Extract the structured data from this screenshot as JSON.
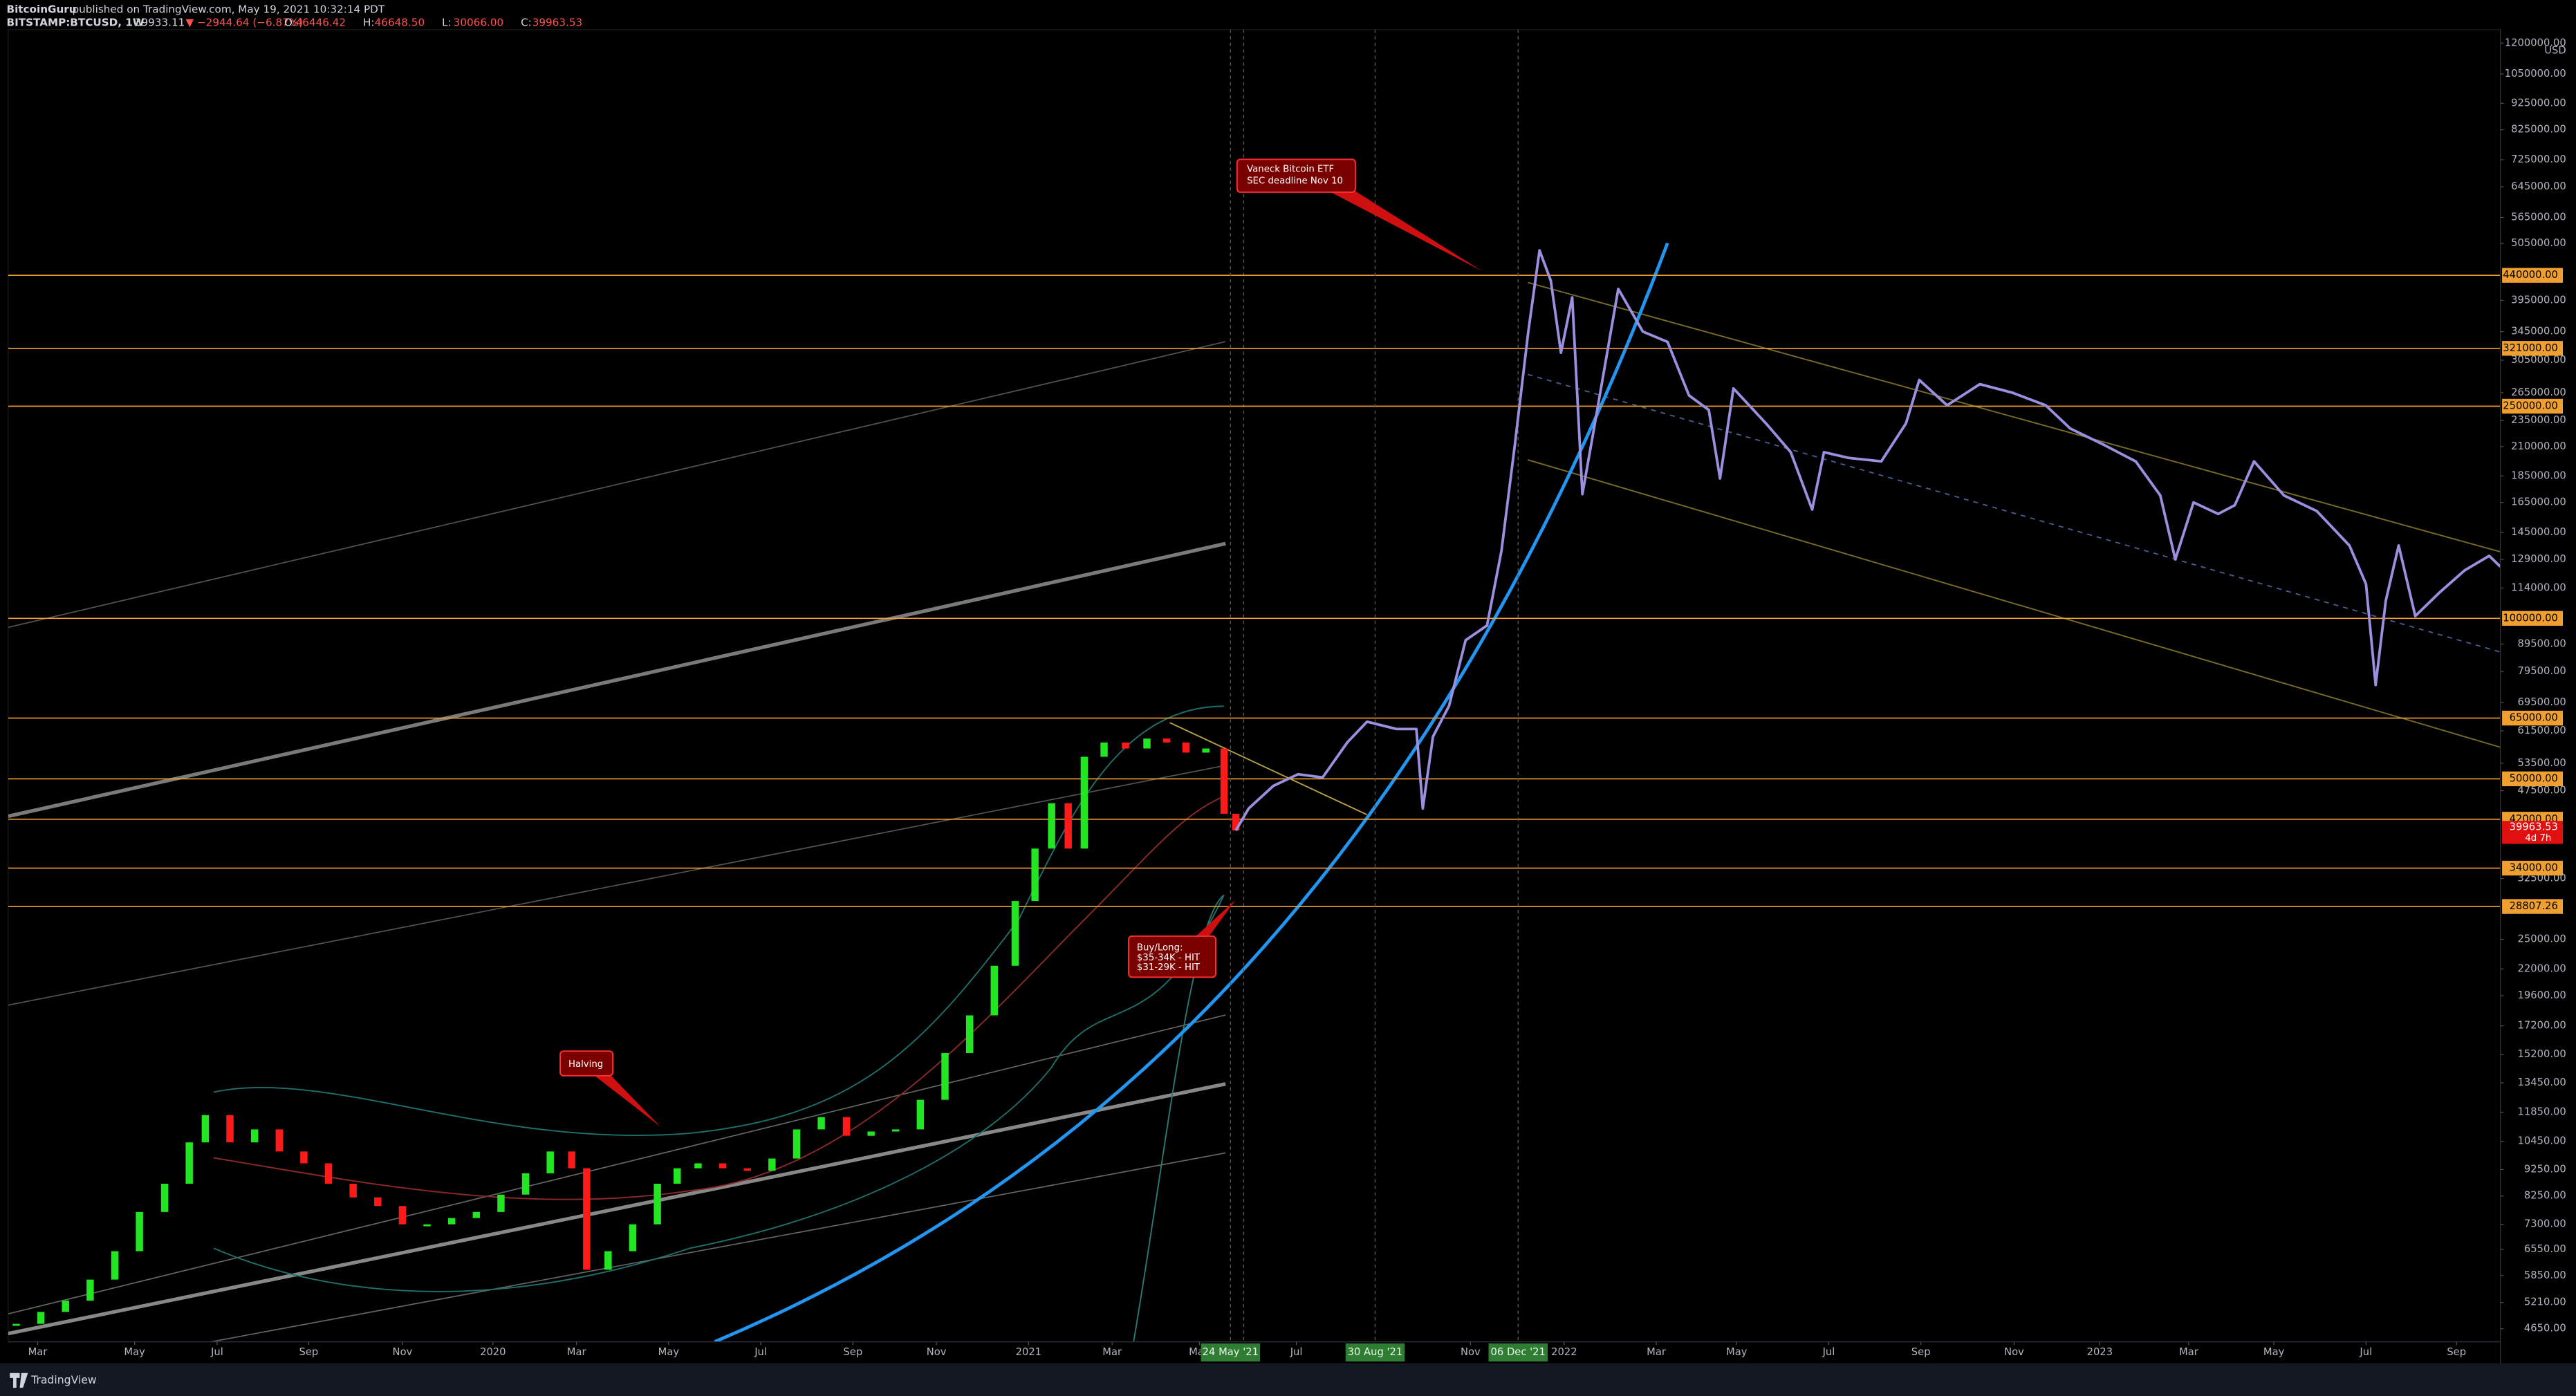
{
  "header": {
    "author": "BitcoinGuru",
    "published": "published on TradingView.com, May 19, 2021 10:32:14 PDT",
    "symbol": "BITSTAMP:BTCUSD, 1W",
    "last": "39933.11",
    "change": "▼ −2944.64 (−6.87%)",
    "ohlc": [
      {
        "key": "O:",
        "value": "46446.42"
      },
      {
        "key": "H:",
        "value": "46648.50"
      },
      {
        "key": "L:",
        "value": "30066.00"
      },
      {
        "key": "C:",
        "value": "39963.53"
      }
    ]
  },
  "price_axis": {
    "log_scale": true,
    "unit": "USD",
    "ylim": [
      4395,
      1272000
    ],
    "ticks": [
      {
        "value": 1200000,
        "label": "1200000.00"
      },
      {
        "value": 1050000,
        "label": "1050000.00"
      },
      {
        "value": 925000,
        "label": "925000.00"
      },
      {
        "value": 825000,
        "label": "825000.00"
      },
      {
        "value": 725000,
        "label": "725000.00"
      },
      {
        "value": 645000,
        "label": "645000.00"
      },
      {
        "value": 565000,
        "label": "565000.00"
      },
      {
        "value": 505000,
        "label": "505000.00"
      },
      {
        "value": 395000,
        "label": "395000.00"
      },
      {
        "value": 345000,
        "label": "345000.00"
      },
      {
        "value": 305000,
        "label": "305000.00"
      },
      {
        "value": 265000,
        "label": "265000.00"
      },
      {
        "value": 235000,
        "label": "235000.00"
      },
      {
        "value": 210000,
        "label": "210000.00"
      },
      {
        "value": 185000,
        "label": "185000.00"
      },
      {
        "value": 165000,
        "label": "165000.00"
      },
      {
        "value": 145000,
        "label": "145000.00"
      },
      {
        "value": 129000,
        "label": "129000.00"
      },
      {
        "value": 114000,
        "label": "114000.00"
      },
      {
        "value": 89500,
        "label": "89500.00"
      },
      {
        "value": 79500,
        "label": "79500.00"
      },
      {
        "value": 69500,
        "label": "69500.00"
      },
      {
        "value": 61500,
        "label": "61500.00"
      },
      {
        "value": 53500,
        "label": "53500.00"
      },
      {
        "value": 47500,
        "label": "47500.00"
      },
      {
        "value": 32500,
        "label": "32500.00"
      },
      {
        "value": 25000,
        "label": "25000.00"
      },
      {
        "value": 22000,
        "label": "22000.00"
      },
      {
        "value": 19600,
        "label": "19600.00"
      },
      {
        "value": 17200,
        "label": "17200.00"
      },
      {
        "value": 15200,
        "label": "15200.00"
      },
      {
        "value": 13450,
        "label": "13450.00"
      },
      {
        "value": 11850,
        "label": "11850.00"
      },
      {
        "value": 10450,
        "label": "10450.00"
      },
      {
        "value": 9250,
        "label": "9250.00"
      },
      {
        "value": 8250,
        "label": "8250.00"
      },
      {
        "value": 7300,
        "label": "7300.00"
      },
      {
        "value": 6550,
        "label": "6550.00"
      },
      {
        "value": 5850,
        "label": "5850.00"
      },
      {
        "value": 5210,
        "label": "5210.00"
      },
      {
        "value": 4650,
        "label": "4650.00"
      }
    ],
    "current_price": {
      "value": 39963.53,
      "label": "39963.53"
    },
    "countdown": "4d 7h"
  },
  "levels": {
    "color": "#f0a030",
    "values": [
      {
        "value": 440000,
        "label": "440000.00"
      },
      {
        "value": 321000,
        "label": "321000.00"
      },
      {
        "value": 250000,
        "label": "250000.00"
      },
      {
        "value": 100000,
        "label": "100000.00"
      },
      {
        "value": 65000,
        "label": "65000.00"
      },
      {
        "value": 50000,
        "label": "50000.00"
      },
      {
        "value": 42000,
        "label": "42000.00"
      },
      {
        "value": 34000,
        "label": "34000.00"
      },
      {
        "value": 28807.26,
        "label": "28807.26"
      }
    ]
  },
  "time_axis": {
    "xlim": [
      2019.095,
      2023.748
    ],
    "ticks": [
      {
        "value": 2019.15,
        "label": "Mar"
      },
      {
        "value": 2019.331,
        "label": "May"
      },
      {
        "value": 2019.485,
        "label": "Jul"
      },
      {
        "value": 2019.656,
        "label": "Sep"
      },
      {
        "value": 2019.831,
        "label": "Nov"
      },
      {
        "value": 2020,
        "label": "2020"
      },
      {
        "value": 2020.156,
        "label": "Mar"
      },
      {
        "value": 2020.328,
        "label": "May"
      },
      {
        "value": 2020.5,
        "label": "Jul"
      },
      {
        "value": 2020.672,
        "label": "Sep"
      },
      {
        "value": 2020.828,
        "label": "Nov"
      },
      {
        "value": 2021,
        "label": "2021"
      },
      {
        "value": 2021.156,
        "label": "Mar"
      },
      {
        "value": 2021.319,
        "label": "May"
      },
      {
        "value": 2021.5,
        "label": "Jul"
      },
      {
        "value": 2021.825,
        "label": "Nov"
      },
      {
        "value": 2022,
        "label": "2022"
      },
      {
        "value": 2022.172,
        "label": "Mar"
      },
      {
        "value": 2022.322,
        "label": "May"
      },
      {
        "value": 2022.494,
        "label": "Jul"
      },
      {
        "value": 2022.666,
        "label": "Sep"
      },
      {
        "value": 2022.84,
        "label": "Nov"
      },
      {
        "value": 2023,
        "label": "2023"
      },
      {
        "value": 2023.166,
        "label": "Mar"
      },
      {
        "value": 2023.325,
        "label": "May"
      },
      {
        "value": 2023.497,
        "label": "Jul"
      },
      {
        "value": 2023.666,
        "label": "Sep"
      }
    ],
    "markers": [
      {
        "value": 2021.377,
        "label": "24 May '21"
      },
      {
        "value": 2021.647,
        "label": "30 Aug '21"
      },
      {
        "value": 2021.914,
        "label": "06 Dec '21"
      }
    ]
  },
  "history": {
    "up_color": "#22e622",
    "down_color": "#ff1a1a",
    "t": [
      2019.11,
      2019.156,
      2019.202,
      2019.248,
      2019.294,
      2019.34,
      2019.387,
      2019.433,
      2019.463,
      2019.509,
      2019.555,
      2019.601,
      2019.647,
      2019.693,
      2019.739,
      2019.785,
      2019.831,
      2019.877,
      2019.923,
      2019.969,
      2020.015,
      2020.061,
      2020.107,
      2020.147,
      2020.175,
      2020.215,
      2020.261,
      2020.307,
      2020.344,
      2020.383,
      2020.429,
      2020.475,
      2020.521,
      2020.567,
      2020.613,
      2020.66,
      2020.706,
      2020.752,
      2020.798,
      2020.844,
      2020.89,
      2020.936,
      2020.975,
      2021.012,
      2021.043,
      2021.074,
      2021.104,
      2021.141,
      2021.181,
      2021.221,
      2021.258,
      2021.294,
      2021.331,
      2021.365,
      2021.387
    ],
    "close": [
      4750,
      5000,
      5250,
      5750,
      6500,
      7700,
      8700,
      10400,
      11700,
      10400,
      11000,
      10000,
      9500,
      8700,
      8200,
      7900,
      7300,
      7300,
      7500,
      7700,
      8300,
      9100,
      10000,
      9300,
      6000,
      6500,
      7300,
      8700,
      9300,
      9500,
      9300,
      9200,
      9700,
      11000,
      11600,
      10700,
      10900,
      11000,
      12500,
      15300,
      18000,
      22300,
      29500,
      37000,
      45000,
      37000,
      55000,
      58500,
      57000,
      59500,
      58500,
      56000,
      57000,
      43000,
      40000
    ]
  },
  "projection": {
    "color": "#9b8fe0",
    "t": [
      2021.387,
      2021.411,
      2021.457,
      2021.503,
      2021.549,
      2021.595,
      2021.632,
      2021.687,
      2021.724,
      2021.736,
      2021.755,
      2021.785,
      2021.816,
      2021.856,
      2021.883,
      2021.908,
      2021.933,
      2021.954,
      2021.975,
      2021.994,
      2022.015,
      2022.034,
      2022.055,
      2022.101,
      2022.147,
      2022.193,
      2022.233,
      2022.27,
      2022.291,
      2022.316,
      2022.377,
      2022.423,
      2022.463,
      2022.485,
      2022.531,
      2022.592,
      2022.638,
      2022.663,
      2022.715,
      2022.776,
      2022.837,
      2022.899,
      2022.945,
      2023.006,
      2023.067,
      2023.113,
      2023.141,
      2023.175,
      2023.221,
      2023.252,
      2023.288,
      2023.344,
      2023.405,
      2023.466,
      2023.497,
      2023.515,
      2023.534,
      2023.558,
      2023.589,
      2023.635,
      2023.681,
      2023.727,
      2023.748
    ],
    "price": [
      40000,
      44000,
      48500,
      51000,
      50300,
      58500,
      64000,
      62000,
      62000,
      44000,
      60000,
      68500,
      91000,
      97000,
      134000,
      212000,
      345000,
      490000,
      430000,
      315000,
      400000,
      171000,
      225000,
      415000,
      345000,
      330000,
      262000,
      246000,
      183000,
      270000,
      232000,
      205000,
      160000,
      205000,
      200000,
      197000,
      232000,
      280000,
      251000,
      275000,
      265000,
      251000,
      227000,
      212000,
      197000,
      170000,
      129000,
      165000,
      157000,
      163000,
      197000,
      170000,
      159000,
      137000,
      116000,
      75000,
      108000,
      137000,
      101000,
      112000,
      123000,
      131000,
      125000
    ]
  },
  "annotations": [
    {
      "lines": [
        "Vaneck Bitcoin ETF",
        "SEC deadline Nov 10"
      ]
    },
    {
      "lines": [
        "Halving"
      ]
    },
    {
      "lines": [
        "Buy/Long:",
        "$35-34K - HIT",
        "$31-29K - HIT"
      ]
    }
  ],
  "footer": {
    "brand": "TradingView"
  }
}
